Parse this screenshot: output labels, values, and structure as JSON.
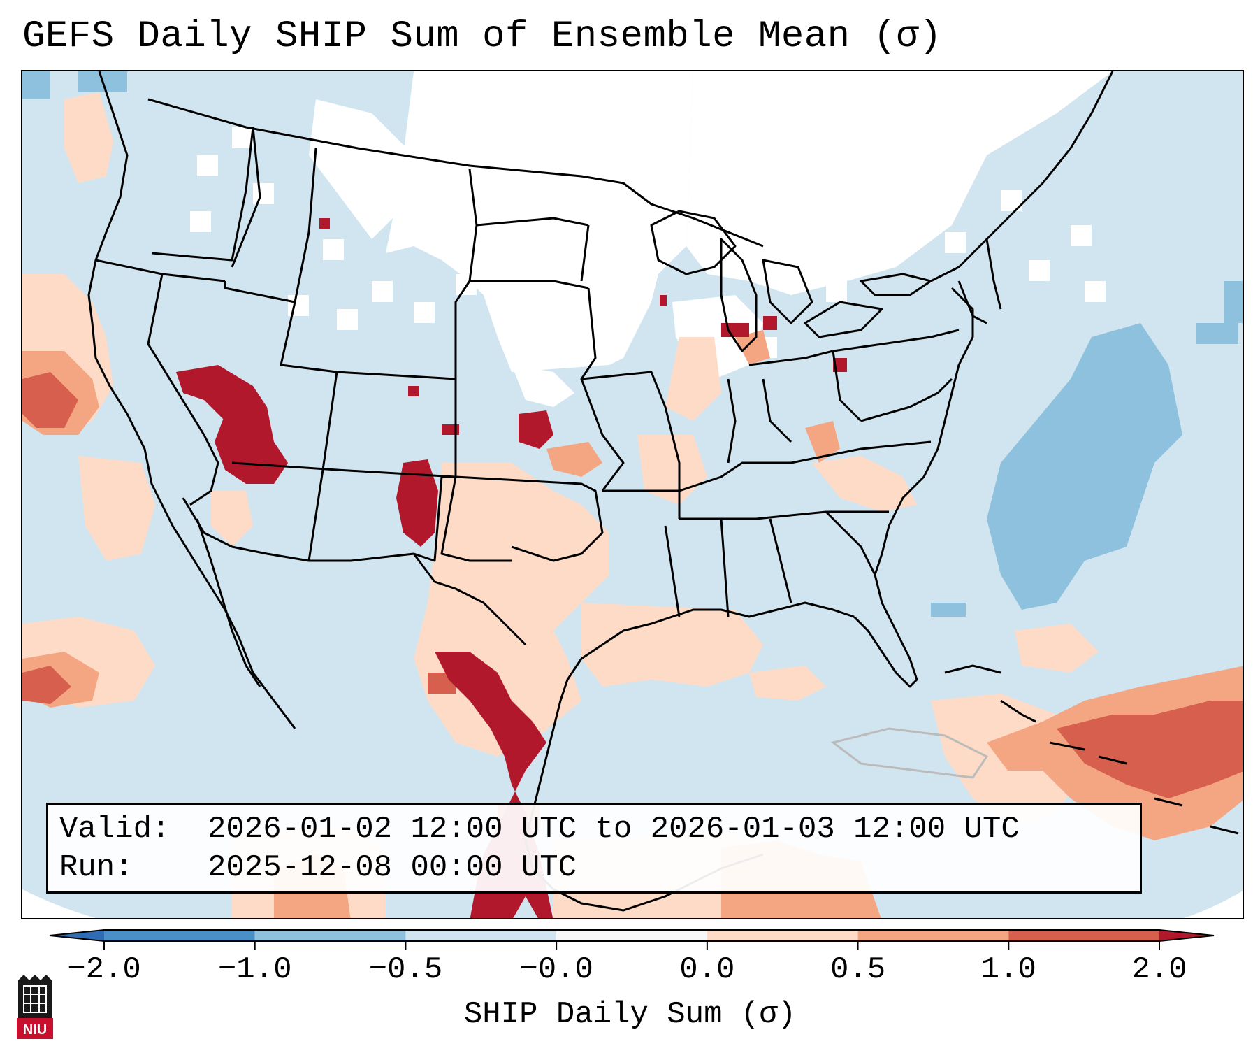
{
  "title": "GEFS Daily SHIP Sum of Ensemble Mean (σ)",
  "info": {
    "valid_label": "Valid:",
    "valid_value": "2026-01-02 12:00 UTC to 2026-01-03 12:00 UTC",
    "run_label": "Run:",
    "run_value": "2025-12-08 00:00 UTC"
  },
  "colorbar": {
    "label": "SHIP Daily Sum (σ)",
    "ticks": [
      "−2.0",
      "−1.0",
      "−0.5",
      "−0.0",
      "0.0",
      "0.5",
      "1.0",
      "2.0"
    ],
    "bins": [
      {
        "range": "below -2.0",
        "color": "#2e6db4"
      },
      {
        "range": "-2.0 to -1.0",
        "color": "#4a90c8"
      },
      {
        "range": "-1.0 to -0.5",
        "color": "#8ec1de"
      },
      {
        "range": "-0.5 to -0.0",
        "color": "#d1e5f0"
      },
      {
        "range": "-0.0 to 0.0",
        "color": "#f7f7f7"
      },
      {
        "range": "0.0 to 0.5",
        "color": "#fddbc7"
      },
      {
        "range": "0.5 to 1.0",
        "color": "#f4a582"
      },
      {
        "range": "1.0 to 2.0",
        "color": "#d6604d"
      },
      {
        "range": "above 2.0",
        "color": "#b2182b"
      }
    ]
  },
  "map": {
    "background_color": "#d1e5f0",
    "neutral_color": "#ffffff",
    "border_color": "#000000"
  },
  "logo": {
    "text": "NIU",
    "color": "#c8102e"
  }
}
